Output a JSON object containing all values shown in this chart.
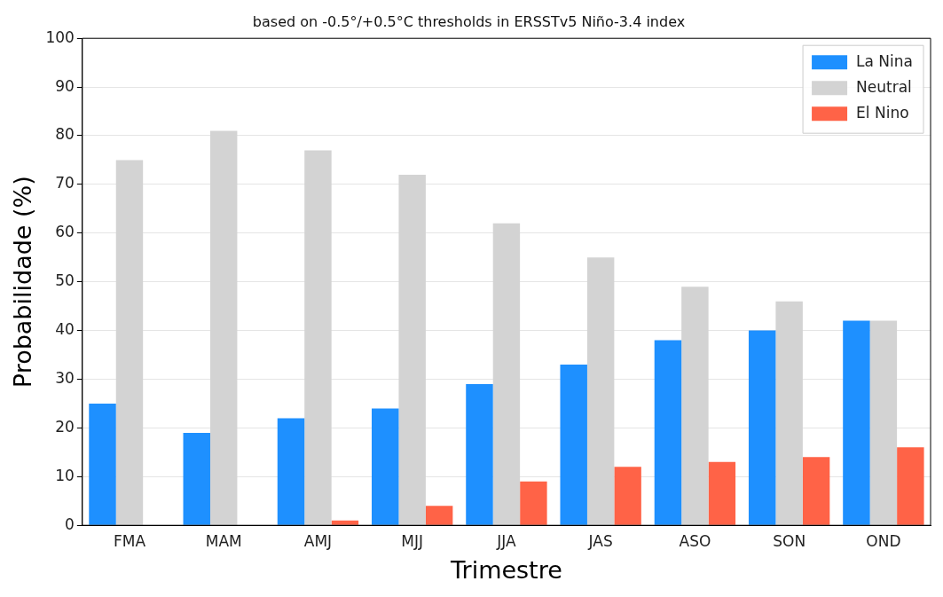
{
  "chart_data": {
    "type": "bar",
    "title": "based on -0.5°/+0.5°C thresholds in ERSSTv5 Niño-3.4 index",
    "xlabel": "Trimestre",
    "ylabel": "Probabilidade (%)",
    "categories": [
      "FMA",
      "MAM",
      "AMJ",
      "MJJ",
      "JJA",
      "JAS",
      "ASO",
      "SON",
      "OND"
    ],
    "series": [
      {
        "name": "La Nina",
        "color": "#1e90ff",
        "values": [
          25,
          19,
          22,
          24,
          29,
          33,
          38,
          40,
          42
        ]
      },
      {
        "name": "Neutral",
        "color": "#d3d3d3",
        "values": [
          75,
          81,
          77,
          72,
          62,
          55,
          49,
          46,
          42
        ]
      },
      {
        "name": "El Nino",
        "color": "#ff6347",
        "values": [
          0,
          0,
          1,
          4,
          9,
          12,
          13,
          14,
          16
        ]
      }
    ],
    "ylim": [
      0,
      100
    ],
    "yticks": [
      0,
      10,
      20,
      30,
      40,
      50,
      60,
      70,
      80,
      90,
      100
    ],
    "grid": "y",
    "legend": "top right"
  }
}
